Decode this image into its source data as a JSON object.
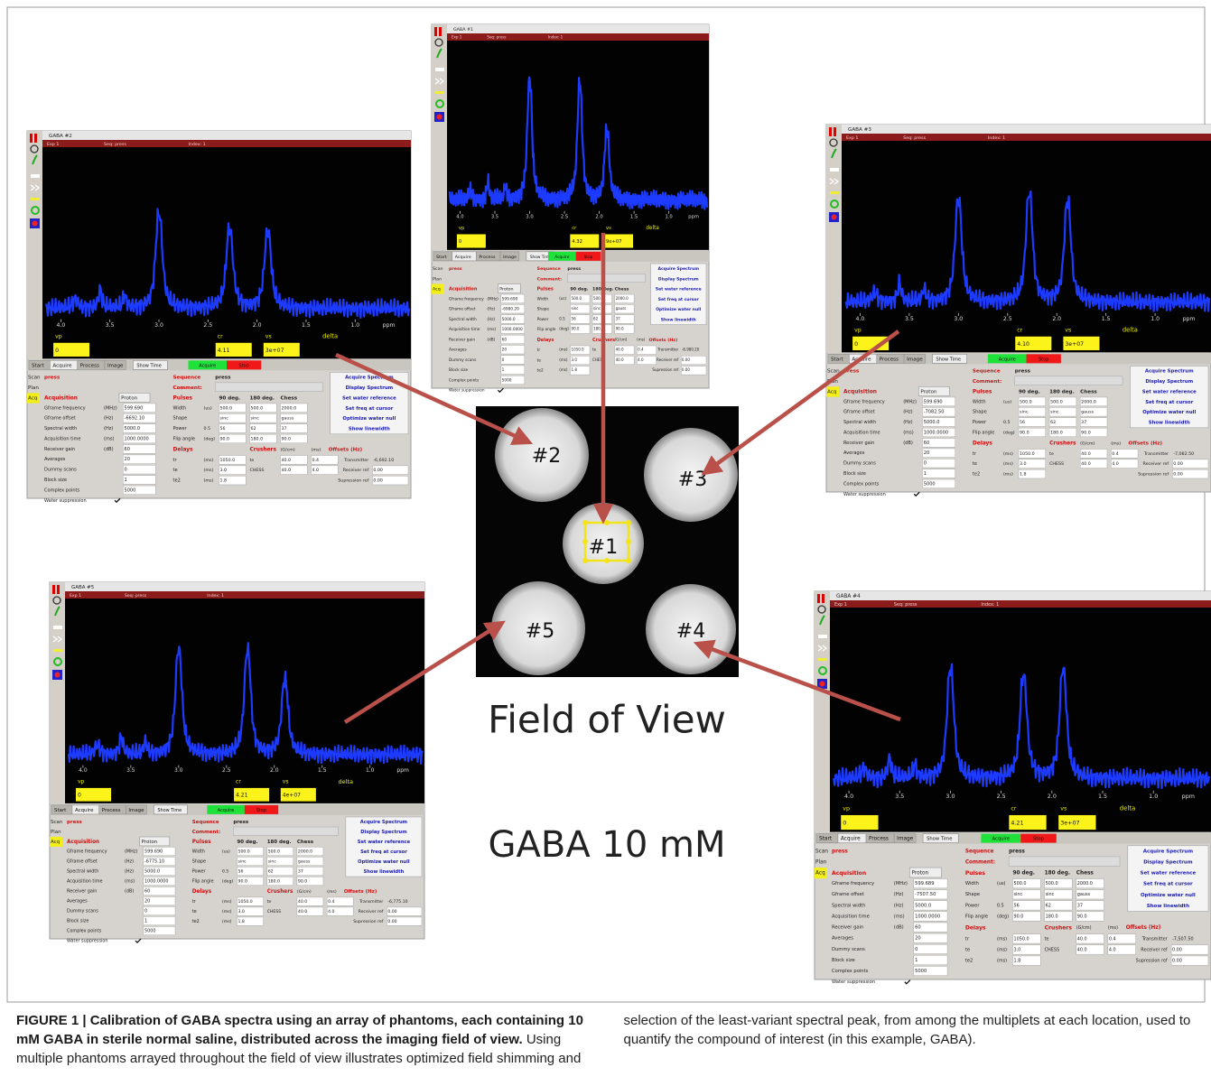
{
  "figure": {
    "label_fov": "Field of View",
    "label_conc": "GABA 10 mM",
    "phantoms": [
      "#1",
      "#2",
      "#3",
      "#4",
      "#5"
    ],
    "ui": {
      "header": [
        "Exp 1",
        "Seq: press",
        "Index: 1"
      ],
      "axis_ticks": [
        "4.0",
        "3.5",
        "3.0",
        "2.5",
        "2.0",
        "1.5",
        "1.0"
      ],
      "axis_unit": "ppm",
      "axis_name": "delta",
      "readouts": [
        "vp",
        "cr",
        "vs"
      ],
      "tabs": [
        "Start",
        "Acquire",
        "Process",
        "Image"
      ],
      "show_time": "Show Time",
      "acquire": "Acquire",
      "stop": "Stop",
      "side": [
        "Scan",
        "Plan",
        "Acq"
      ],
      "scan_value": "press",
      "acq_title": "Acquisition",
      "nucleus": "Proton",
      "acq_rows": [
        {
          "label": "Gframe frequency",
          "unit": "(MHz)"
        },
        {
          "label": "Gframe offset",
          "unit": "(Hz)"
        },
        {
          "label": "Spectral width",
          "unit": "(Hz)",
          "value": "5000.0"
        },
        {
          "label": "Acquisition time",
          "unit": "(ms)",
          "value": "1000.0000"
        },
        {
          "label": "Receiver gain",
          "unit": "(dB)",
          "value": "60"
        },
        {
          "label": "Averages",
          "value": "20"
        },
        {
          "label": "Dummy scans",
          "value": "0"
        },
        {
          "label": "Block size",
          "value": "1"
        },
        {
          "label": "Complex points",
          "value": "5000"
        },
        {
          "label": "Water suppression"
        }
      ],
      "sequence_label": "Sequence",
      "comment_label": "Comment:",
      "sequence": "press",
      "pulses": "Pulses",
      "pulse_cols": [
        "90 deg.",
        "180 deg.",
        "Chess"
      ],
      "pulse_rows": [
        {
          "label": "Width",
          "unit": "(us)",
          "values": [
            "500.0",
            "500.0",
            "2000.0"
          ]
        },
        {
          "label": "Shape",
          "values": [
            "sinc",
            "sinc",
            "gauss"
          ]
        },
        {
          "label": "Power",
          "unit": "0.5",
          "values": [
            "56",
            "62",
            "37"
          ]
        },
        {
          "label": "Flip angle",
          "unit": "(deg)",
          "values": [
            "90.0",
            "180.0",
            "90.0"
          ]
        }
      ],
      "delays": "Delays",
      "crushers": "Crushers",
      "crusher_unit": "(G/cm)",
      "crusher_ms": "(ms)",
      "delay_rows": [
        {
          "label": "tr",
          "unit": "(ms)",
          "value": "1050.0"
        },
        {
          "label": "te",
          "unit": "(ms)",
          "value": "3.0"
        },
        {
          "label": "te2",
          "unit": "(ms)",
          "value": "1.8"
        }
      ],
      "crusher_rows": [
        {
          "label": "te",
          "values": [
            "40.0",
            "0.4"
          ]
        },
        {
          "label": "CHESS",
          "values": [
            "40.0",
            "4.0"
          ]
        }
      ],
      "buttons": [
        "Acquire Spectrum",
        "Display Spectrum",
        "Set water reference",
        "Set freq at cursor",
        "Optimize water null",
        "Show linewidth"
      ],
      "offsets": "Offsets (Hz)",
      "offset_rows": [
        "Transmitter",
        "Receiver ref",
        "Supression ref"
      ],
      "offset_zero": "0.00"
    },
    "panels": [
      {
        "title": "GABA #1",
        "vp": "0",
        "cr": "4.32",
        "vs": "9e+07",
        "frequency": "599.690",
        "offset": "-6980.20",
        "transmitter": "-6,980.20"
      },
      {
        "title": "GABA #2",
        "vp": "0",
        "cr": "4.11",
        "vs": "3e+07",
        "frequency": "599.690",
        "offset": "-6692.10",
        "transmitter": "-6,692.10"
      },
      {
        "title": "GABA #3",
        "vp": "0",
        "cr": "4.10",
        "vs": "3e+07",
        "frequency": "599.690",
        "offset": "-7082.50",
        "transmitter": "-7,082.50"
      },
      {
        "title": "GABA #4",
        "vp": "0",
        "cr": "4.21",
        "vs": "3e+07",
        "frequency": "599.689",
        "offset": "-7507.50",
        "transmitter": "-7,507.50"
      },
      {
        "title": "GABA #5",
        "vp": "0",
        "cr": "4.21",
        "vs": "4e+07",
        "frequency": "599.690",
        "offset": "-6775.10",
        "transmitter": "-6,775.10"
      }
    ],
    "caption": {
      "bold": "FIGURE 1 | Calibration of GABA spectra using an array of phantoms, each containing 10 mM GABA in sterile normal saline, distributed across the imaging field of view.",
      "text": "Using multiple phantoms arrayed throughout the field of view illustrates optimized field shimming and selection of the least-variant spectral peak, from among the multiplets at each location, used to quantify the compound of interest (in this example, GABA)."
    }
  }
}
